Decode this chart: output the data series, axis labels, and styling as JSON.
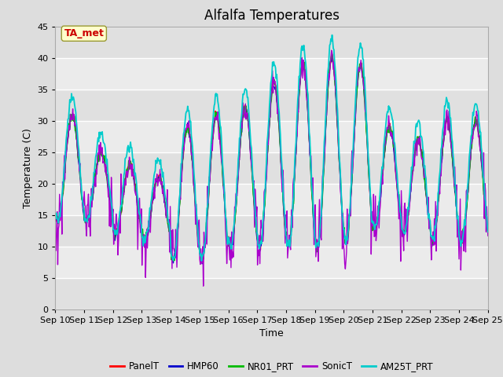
{
  "title": "Alfalfa Temperatures",
  "xlabel": "Time",
  "ylabel": "Temperature (C)",
  "ylim": [
    0,
    45
  ],
  "yticks": [
    0,
    5,
    10,
    15,
    20,
    25,
    30,
    35,
    40,
    45
  ],
  "xtick_labels": [
    "Sep 10",
    "Sep 11",
    "Sep 12",
    "Sep 13",
    "Sep 14",
    "Sep 15",
    "Sep 16",
    "Sep 17",
    "Sep 18",
    "Sep 19",
    "Sep 20",
    "Sep 21",
    "Sep 22",
    "Sep 23",
    "Sep 24",
    "Sep 25"
  ],
  "series": [
    {
      "name": "PanelT",
      "color": "#FF0000",
      "lw": 1.0
    },
    {
      "name": "HMP60",
      "color": "#0000CC",
      "lw": 1.0
    },
    {
      "name": "NR01_PRT",
      "color": "#00BB00",
      "lw": 1.2
    },
    {
      "name": "SonicT",
      "color": "#AA00CC",
      "lw": 1.0
    },
    {
      "name": "AM25T_PRT",
      "color": "#00CCCC",
      "lw": 1.3
    }
  ],
  "annotation_text": "TA_met",
  "annotation_color": "#CC0000",
  "annotation_bg": "#FFFFCC",
  "bg_color": "#DDDDDD",
  "plot_bg_color": "#EEEEEE",
  "grid_color": "#FFFFFF",
  "title_fontsize": 12,
  "label_fontsize": 9,
  "tick_fontsize": 8
}
